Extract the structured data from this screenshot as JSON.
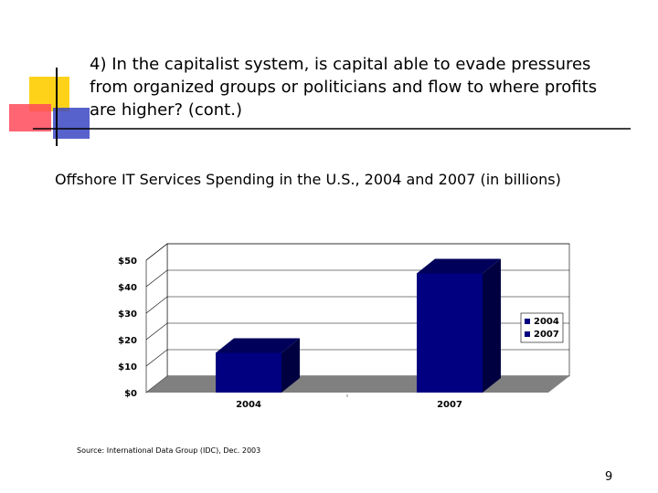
{
  "slide": {
    "heading_lines": [
      "4) In the capitalist system, is capital able to evade pressures",
      "from organized groups or politicians and flow to where profits",
      "are higher? (cont.)"
    ],
    "source": "Source:  International Data Group (IDC), Dec. 2003",
    "page_number": "9"
  },
  "colors": {
    "deco_yellow": "#ffd21a",
    "deco_red": "#ff4a5a",
    "deco_blue": "#3b47c4",
    "bar_front": "#000080",
    "bar_top": "#00005a",
    "bar_side": "#000040",
    "floor": "#808080",
    "grid": "#000000"
  },
  "chart_data": {
    "type": "bar",
    "title": "Offshore IT Services Spending in the U.S., 2004 and 2007 (in billions)",
    "categories": [
      "2004",
      "2007"
    ],
    "values": [
      15,
      45
    ],
    "series": [
      {
        "name": "2004",
        "values": [
          15,
          null
        ]
      },
      {
        "name": "2007",
        "values": [
          null,
          45
        ]
      }
    ],
    "yticks": [
      "$0",
      "$10",
      "$20",
      "$30",
      "$40",
      "$50"
    ],
    "ylim": [
      0,
      50
    ],
    "xlabel": "",
    "ylabel": "",
    "grid": true,
    "legend": "right",
    "three_d": true
  }
}
